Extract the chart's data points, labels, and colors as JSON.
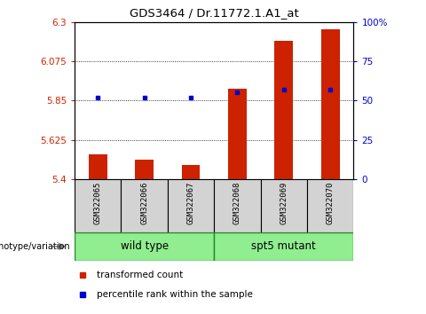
{
  "title": "GDS3464 / Dr.11772.1.A1_at",
  "samples": [
    "GSM322065",
    "GSM322066",
    "GSM322067",
    "GSM322068",
    "GSM322069",
    "GSM322070"
  ],
  "bar_values": [
    5.54,
    5.51,
    5.48,
    5.92,
    6.19,
    6.26
  ],
  "percentile_values": [
    52,
    52,
    52,
    55,
    57,
    57
  ],
  "y_min": 5.4,
  "y_max": 6.3,
  "y_ticks": [
    5.4,
    5.625,
    5.85,
    6.075,
    6.3
  ],
  "y_tick_labels": [
    "5.4",
    "5.625",
    "5.85",
    "6.075",
    "6.3"
  ],
  "right_y_ticks": [
    0,
    25,
    50,
    75,
    100
  ],
  "right_y_labels": [
    "0",
    "25",
    "50",
    "75",
    "100%"
  ],
  "bar_color": "#CC2200",
  "dot_color": "#0000CC",
  "legend_items": [
    "transformed count",
    "percentile rank within the sample"
  ],
  "genotype_label": "genotype/variation",
  "tick_color_left": "#CC2200",
  "tick_color_right": "#0000CC",
  "group_box_color": "#90EE90",
  "sample_box_color": "#D3D3D3",
  "wild_type_label": "wild type",
  "mutant_label": "spt5 mutant"
}
